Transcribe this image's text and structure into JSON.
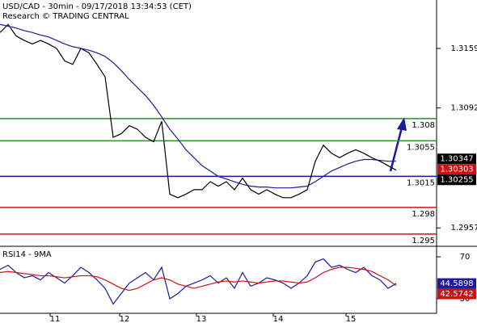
{
  "chart_data": [
    {
      "type": "line",
      "title": "USD/CAD - 30min - 09/17/2018 13:34:53 (CET)",
      "subtitle": "Research © TRADING CENTRAL",
      "xlim": [
        0,
        54
      ],
      "ylim": [
        1.29363,
        1.32135
      ],
      "yticks": [
        1.3159,
        1.3092,
        1.2957
      ],
      "series": [
        {
          "color": "#000000",
          "values": [
            1.3177,
            1.3186,
            1.3173,
            1.3168,
            1.3164,
            1.3168,
            1.3164,
            1.3159,
            1.3145,
            1.3141,
            1.3159,
            1.3154,
            1.3141,
            1.3127,
            1.3059,
            1.3063,
            1.3072,
            1.3068,
            1.3059,
            1.3054,
            1.3077,
            1.2995,
            1.2991,
            1.2995,
            1.3,
            1.3,
            1.3009,
            1.3004,
            1.3009,
            1.3,
            1.3013,
            1.3,
            1.2995,
            1.3,
            1.2995,
            1.2991,
            1.2991,
            1.2995,
            1.3,
            1.3032,
            1.305,
            1.3041,
            1.3036,
            1.3041,
            1.3045,
            1.3041,
            1.3036,
            1.3032,
            1.3027,
            1.3022
          ]
        },
        {
          "color": "#1a1aa0",
          "values": [
            1.3186,
            1.3184,
            1.3182,
            1.3179,
            1.3177,
            1.3174,
            1.3172,
            1.3168,
            1.3164,
            1.3161,
            1.3159,
            1.3157,
            1.3154,
            1.315,
            1.3143,
            1.3134,
            1.3124,
            1.3115,
            1.3106,
            1.3095,
            1.3082,
            1.3068,
            1.3057,
            1.3045,
            1.3036,
            1.3027,
            1.3021,
            1.3015,
            1.3012,
            1.3009,
            1.3006,
            1.3004,
            1.3003,
            1.3003,
            1.3002,
            1.3002,
            1.3002,
            1.3003,
            1.3004,
            1.3009,
            1.3015,
            1.3021,
            1.3025,
            1.3029,
            1.3032,
            1.3034,
            1.3034,
            1.3033,
            1.3032,
            1.3032
          ]
        }
      ],
      "levels": [
        {
          "value": 1.308,
          "color": "#2e8b2e"
        },
        {
          "value": 1.3055,
          "color": "#2e8b2e"
        },
        {
          "value": 1.3015,
          "color": "#1a1aa0"
        },
        {
          "value": 1.298,
          "color": "#d01010"
        },
        {
          "value": 1.295,
          "color": "#d01010"
        }
      ],
      "last_values": [
        {
          "value": 1.30347,
          "color": "#000000"
        },
        {
          "value": 1.30303,
          "color": "#d01010"
        },
        {
          "value": 1.30255,
          "color": "#000000"
        }
      ]
    },
    {
      "type": "line",
      "title": "RSI14 - 9MA",
      "xlim": [
        0,
        54
      ],
      "ylim": [
        16.2,
        77.7
      ],
      "yticks": [
        70,
        30
      ],
      "xticks": [
        {
          "value": 6.2,
          "label": "11"
        },
        {
          "value": 14.8,
          "label": "12"
        },
        {
          "value": 24.3,
          "label": "13"
        },
        {
          "value": 33.8,
          "label": "14"
        },
        {
          "value": 42.8,
          "label": "15"
        }
      ],
      "series": [
        {
          "color": "#1a1aa0",
          "values": [
            58,
            62,
            55,
            50,
            52,
            48,
            55,
            50,
            45,
            52,
            60,
            55,
            48,
            40,
            25,
            35,
            45,
            50,
            55,
            48,
            60,
            30,
            35,
            42,
            45,
            48,
            52,
            45,
            50,
            40,
            55,
            42,
            45,
            50,
            48,
            45,
            40,
            45,
            52,
            65,
            68,
            60,
            62,
            58,
            55,
            60,
            52,
            48,
            40,
            44.6
          ]
        },
        {
          "color": "#d01010",
          "values": [
            55,
            56,
            55,
            54,
            53,
            52,
            52,
            51,
            50,
            51,
            52,
            52,
            51,
            48,
            44,
            40,
            38,
            40,
            44,
            48,
            50,
            48,
            44,
            42,
            40,
            42,
            44,
            46,
            47,
            46,
            47,
            46,
            45,
            46,
            47,
            47,
            46,
            45,
            46,
            50,
            55,
            58,
            60,
            60,
            59,
            58,
            56,
            52,
            48,
            42.6
          ]
        }
      ],
      "last_values": [
        {
          "value": 44.5898,
          "color": "#1a1aa0"
        },
        {
          "value": 42.5742,
          "color": "#d01010"
        }
      ]
    }
  ]
}
